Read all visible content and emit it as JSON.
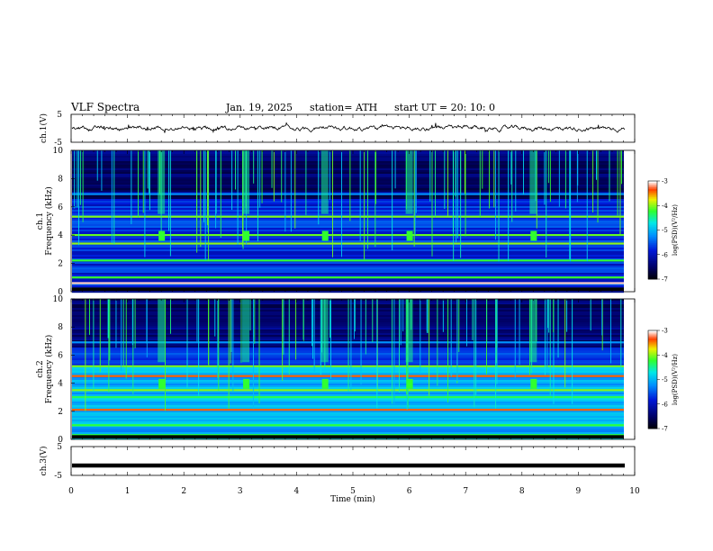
{
  "header": {
    "title": "VLF  Spectra",
    "date": "Jan.  19,  2025",
    "station": "station= ATH",
    "start": "start  UT  =   20: 10: 0"
  },
  "chart_data": [
    {
      "panel": "ch1-waveform",
      "type": "line",
      "ylabel": "ch.1(V)",
      "ylim": [
        -5,
        5
      ],
      "y_ticks": [
        "5",
        "-5"
      ],
      "description_values": "noisy waveform centered near 0 V, amplitude approx ±1 V"
    },
    {
      "panel": "ch1-spectrogram",
      "type": "heatmap",
      "ylabel": [
        "ch.1",
        "Frequency  (kHz)"
      ],
      "ylim": [
        0,
        10
      ],
      "y_ticks": [
        "0",
        "2",
        "4",
        "6",
        "8",
        "10"
      ],
      "colorbar": {
        "label": "log(PSD)(V²/Hz)",
        "ticks": [
          "-3",
          "-4",
          "-5",
          "-6",
          "-7"
        ],
        "range": [
          -7,
          -3
        ]
      },
      "bands_khz": [
        0.6,
        1.0,
        2.2,
        3.4,
        4.0,
        5.3,
        6.9
      ],
      "bursts_min": [
        1.6,
        3.1,
        4.5,
        6.0,
        8.2
      ]
    },
    {
      "panel": "ch2-spectrogram",
      "type": "heatmap",
      "ylabel": [
        "ch.2",
        "Frequency  (kHz)"
      ],
      "ylim": [
        0,
        10
      ],
      "y_ticks": [
        "0",
        "2",
        "4",
        "6",
        "8",
        "10"
      ],
      "colorbar": {
        "label": "log(PSD)(V²/Hz)",
        "ticks": [
          "-3",
          "-4",
          "-5",
          "-6",
          "-7"
        ],
        "range": [
          -7,
          -3
        ]
      },
      "bands_khz": [
        0.3,
        1.0,
        2.1,
        3.0,
        3.5,
        4.5,
        5.2,
        6.9
      ],
      "bursts_min": [
        1.6,
        3.1,
        4.5,
        6.0,
        8.2
      ]
    },
    {
      "panel": "ch3-waveform",
      "type": "line",
      "ylabel": "ch.3(V)",
      "ylim": [
        -5,
        5
      ],
      "y_ticks": [
        "5",
        "-5"
      ],
      "level_v": -1.5
    }
  ],
  "x_axis": {
    "label": "Time  (min)",
    "range": [
      0,
      10
    ],
    "ticks": [
      "0",
      "1",
      "2",
      "3",
      "4",
      "5",
      "6",
      "7",
      "8",
      "9",
      "10"
    ]
  }
}
